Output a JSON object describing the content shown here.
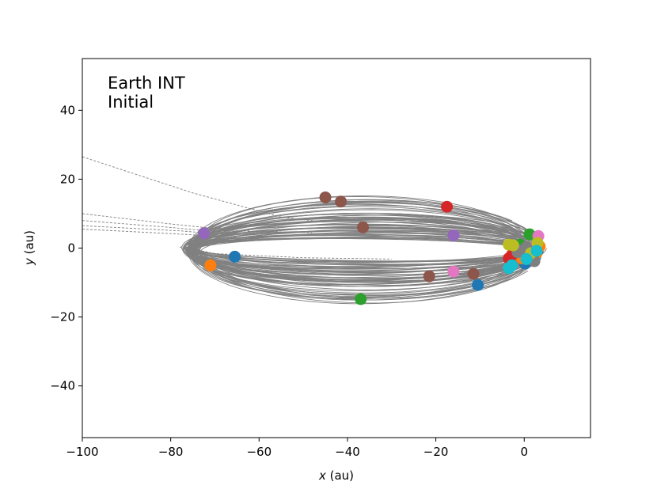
{
  "chart_data": {
    "type": "scatter",
    "title": "",
    "annotation": [
      "Earth INT",
      "Initial"
    ],
    "xlabel": {
      "var": "x",
      "unit": " (au)"
    },
    "ylabel": {
      "var": "y",
      "unit": " (au)"
    },
    "xlim": [
      -100,
      15
    ],
    "ylim": [
      -55,
      55
    ],
    "xticks": [
      -100,
      -80,
      -60,
      -40,
      -20,
      0
    ],
    "yticks": [
      -40,
      -20,
      0,
      20,
      40
    ],
    "xtick_labels": [
      "−100",
      "−80",
      "−60",
      "−40",
      "−20",
      "0"
    ],
    "ytick_labels": [
      "−40",
      "−20",
      "0",
      "20",
      "40"
    ],
    "grid": false,
    "legend": "none",
    "orbit_color": "#808080",
    "series": [
      {
        "color": "#1f77b4",
        "points": [
          [
            -10.5,
            -10.7
          ],
          [
            0.2,
            -4.5
          ],
          [
            2.5,
            -2.5
          ],
          [
            -65.5,
            -2.5
          ],
          [
            3,
            -1
          ]
        ]
      },
      {
        "color": "#ff7f0e",
        "points": [
          [
            3.5,
            0.5
          ],
          [
            2.8,
            -1.5
          ],
          [
            -0.5,
            -3
          ],
          [
            -71,
            -5
          ]
        ]
      },
      {
        "color": "#2ca02c",
        "points": [
          [
            -37,
            -14.8
          ],
          [
            1.2,
            4
          ],
          [
            2,
            -3
          ],
          [
            -1,
            1
          ]
        ]
      },
      {
        "color": "#d62728",
        "points": [
          [
            -17.5,
            12
          ],
          [
            -3.5,
            -3
          ],
          [
            -2.8,
            -2
          ],
          [
            -2,
            -0.5
          ]
        ]
      },
      {
        "color": "#9467bd",
        "points": [
          [
            -16,
            3.7
          ],
          [
            -72.5,
            4.3
          ],
          [
            -0.8,
            -0.8
          ]
        ]
      },
      {
        "color": "#8c564b",
        "points": [
          [
            -45,
            14.7
          ],
          [
            -41.5,
            13.5
          ],
          [
            -21.5,
            -8.2
          ],
          [
            -11.5,
            -7.5
          ],
          [
            -36.5,
            6
          ]
        ]
      },
      {
        "color": "#e377c2",
        "points": [
          [
            -16,
            -6.8
          ],
          [
            3.2,
            3.5
          ],
          [
            2.2,
            0
          ]
        ]
      },
      {
        "color": "#7f7f7f",
        "points": [
          [
            2.3,
            -3.8
          ],
          [
            -1.5,
            -1.2
          ],
          [
            0.5,
            0.2
          ]
        ]
      },
      {
        "color": "#bcbd22",
        "points": [
          [
            -3.5,
            1
          ],
          [
            3,
            1.5
          ],
          [
            -2.5,
            0.8
          ],
          [
            1.5,
            -1.5
          ]
        ]
      },
      {
        "color": "#17becf",
        "points": [
          [
            -3.5,
            -5.8
          ],
          [
            -2.8,
            -5
          ],
          [
            0.5,
            -3.2
          ],
          [
            2.8,
            -0.8
          ]
        ]
      }
    ]
  }
}
